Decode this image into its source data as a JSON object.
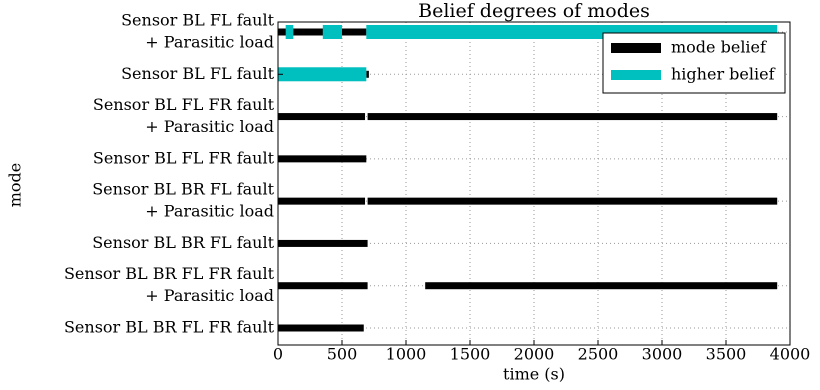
{
  "chart_data": {
    "type": "timeline",
    "title": "Belief degrees of modes",
    "x_label": "time (s)",
    "y_label": "mode",
    "categories": [
      [
        "Sensor BL FL fault",
        "+ Parasitic load"
      ],
      [
        "Sensor BL FL fault"
      ],
      [
        "Sensor BL FL FR fault",
        "+ Parasitic load"
      ],
      [
        "Sensor BL FL FR fault"
      ],
      [
        "Sensor BL BR FL fault",
        "+ Parasitic load"
      ],
      [
        "Sensor BL BR FL fault"
      ],
      [
        "Sensor BL BR FL FR fault",
        "+ Parasitic load"
      ],
      [
        "Sensor BL BR FL FR fault"
      ]
    ],
    "series": [
      {
        "name": "mode belief",
        "color": "#000000",
        "segments": [
          [
            [
              0,
              690
            ]
          ],
          [
            [
              690,
              710
            ]
          ],
          [
            [
              0,
              680
            ],
            [
              700,
              3900
            ]
          ],
          [
            [
              0,
              690
            ]
          ],
          [
            [
              0,
              680
            ],
            [
              700,
              3900
            ]
          ],
          [
            [
              0,
              700
            ]
          ],
          [
            [
              0,
              700
            ],
            [
              1150,
              3900
            ]
          ],
          [
            [
              0,
              670
            ]
          ]
        ]
      },
      {
        "name": "higher belief",
        "color": "#00bfbf",
        "segments": [
          [
            [
              60,
              120
            ],
            [
              350,
              500
            ],
            [
              690,
              3900
            ]
          ],
          [
            [
              0,
              690
            ]
          ],
          [],
          [],
          [],
          [],
          [],
          []
        ]
      }
    ],
    "xlim": [
      0,
      4000
    ],
    "xticks": [
      0,
      500,
      1000,
      1500,
      2000,
      2500,
      3000,
      3500,
      4000
    ],
    "grid": true,
    "legend": "upper right"
  }
}
